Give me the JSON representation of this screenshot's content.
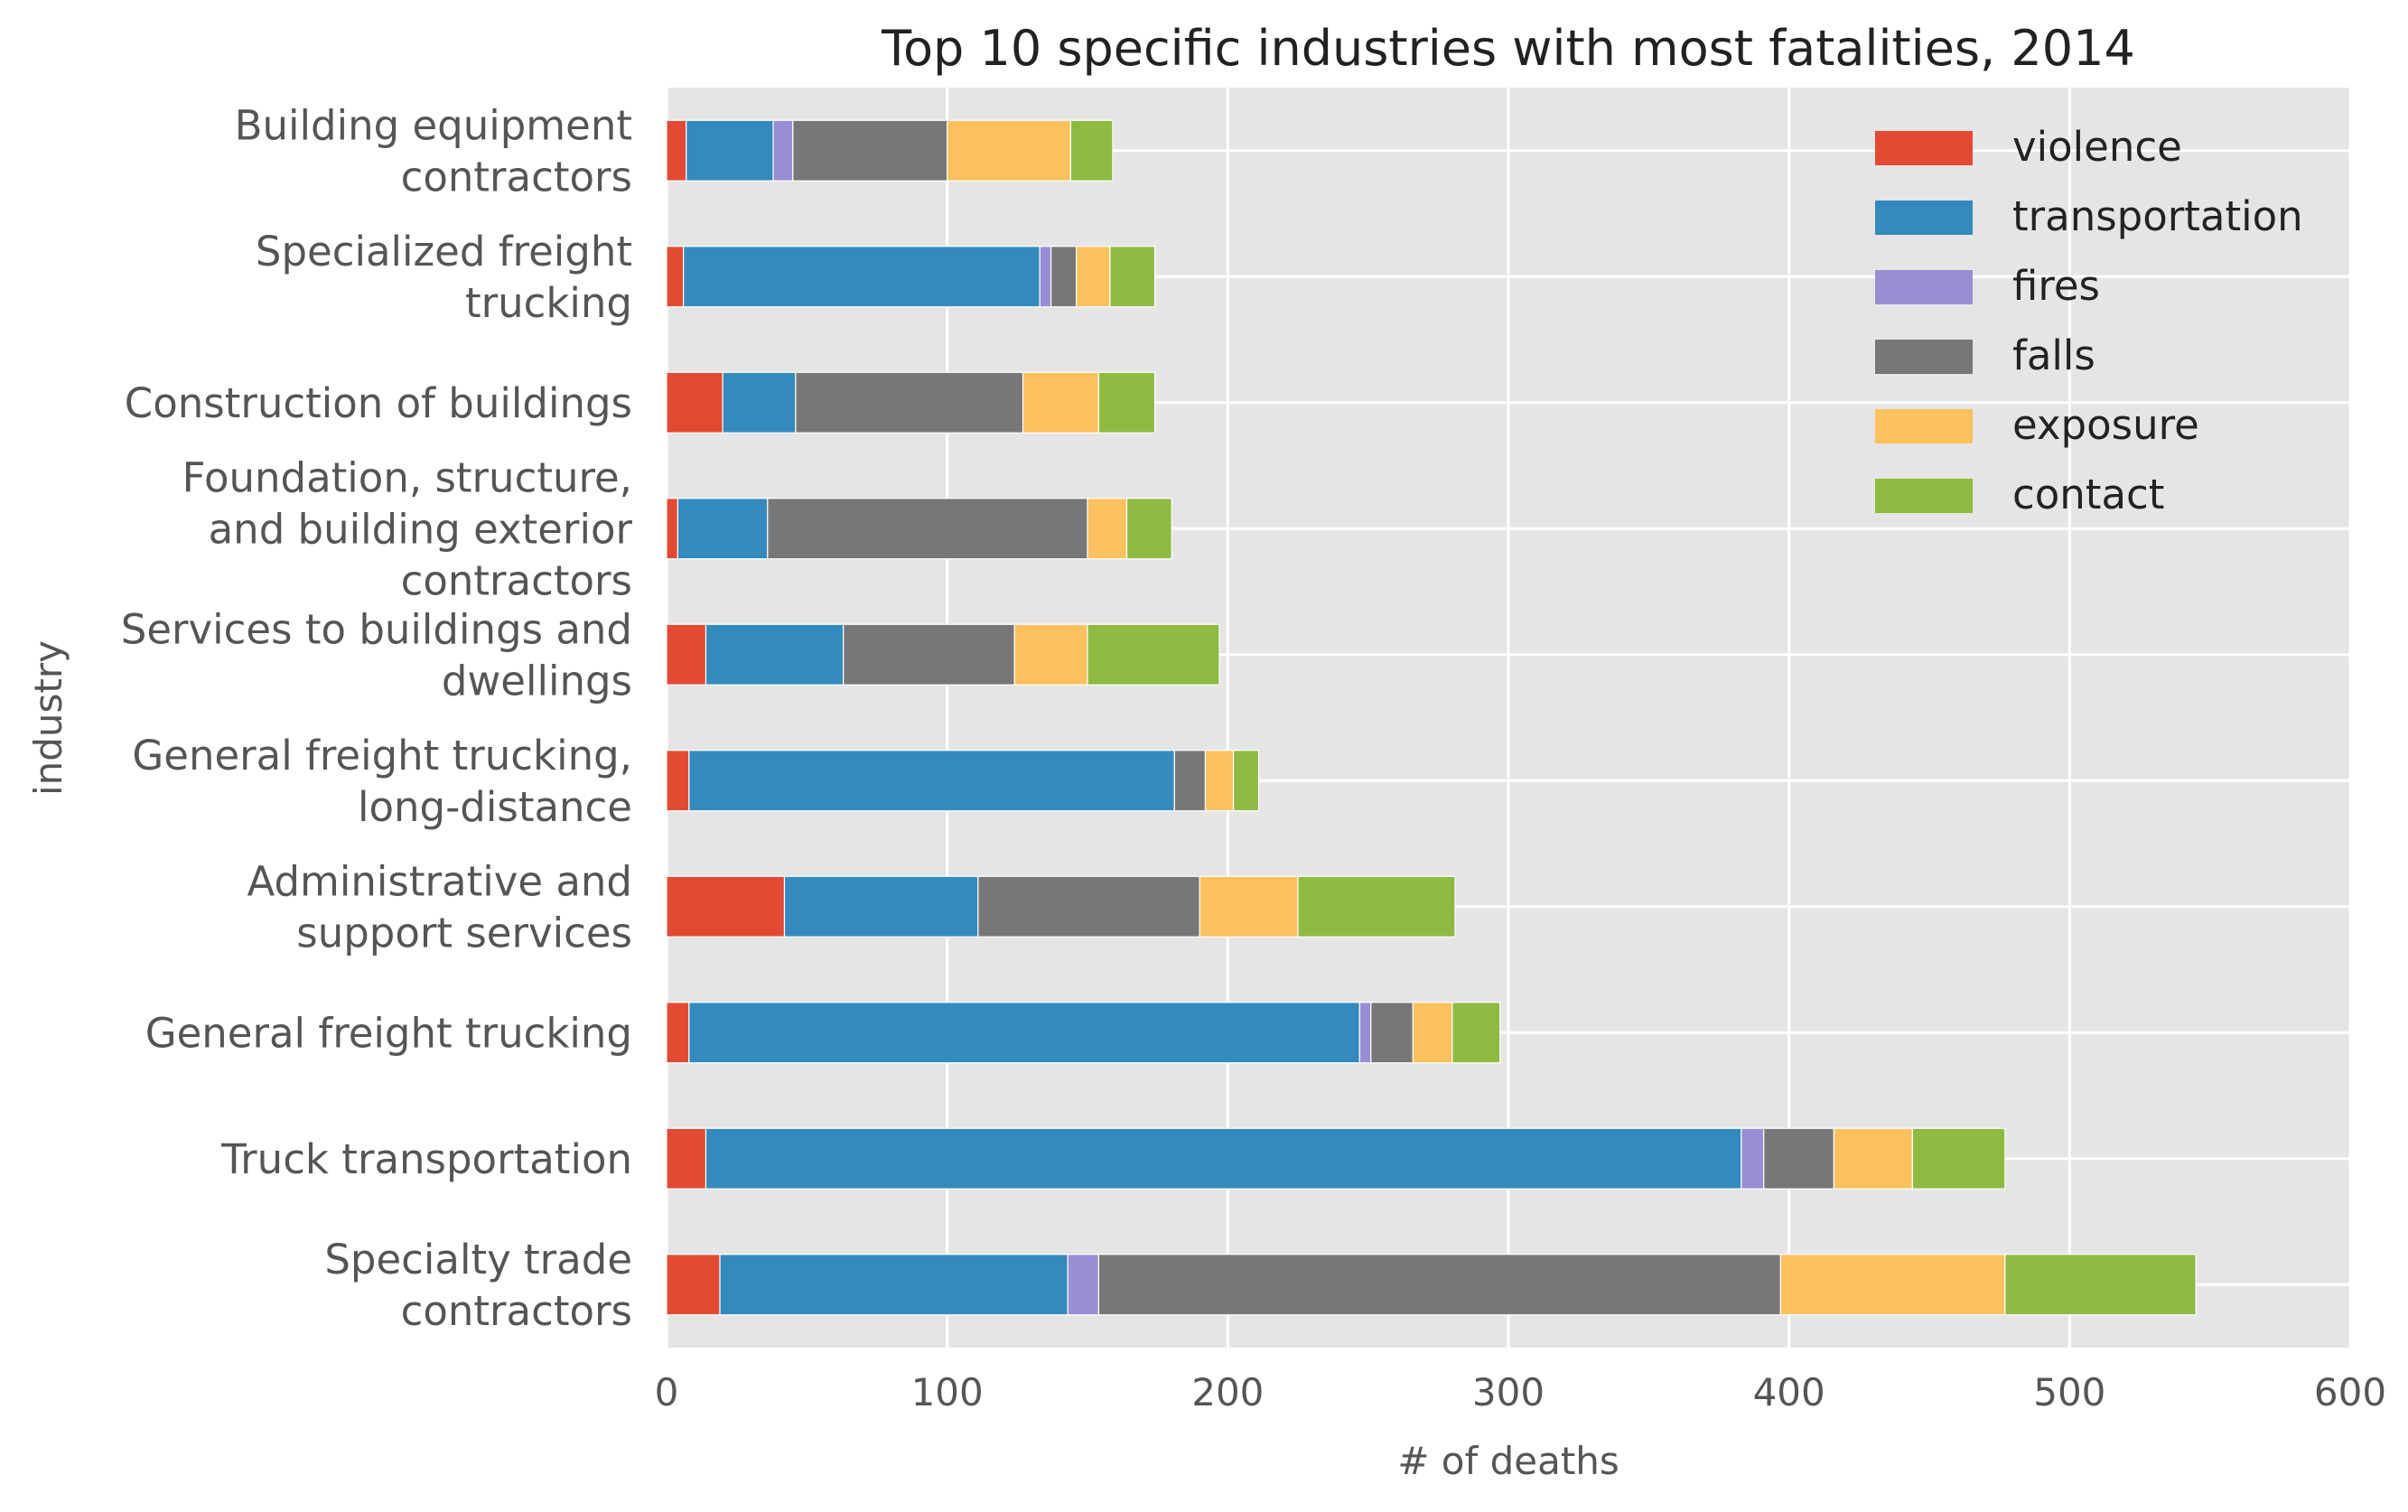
{
  "chart_data": {
    "type": "bar",
    "orientation": "horizontal",
    "stacked": true,
    "title": "Top 10 specific industries with most fatalities, 2014",
    "xlabel": "# of deaths",
    "ylabel": "industry",
    "xlim": [
      0,
      600
    ],
    "xticks": [
      "0",
      "100",
      "200",
      "300",
      "400",
      "500",
      "600"
    ],
    "grid": true,
    "legend_position": "top-right",
    "categories": [
      [
        "Specialty trade",
        "contractors"
      ],
      [
        "Truck transportation"
      ],
      [
        "General freight trucking"
      ],
      [
        "Administrative and",
        "support services"
      ],
      [
        "General freight trucking,",
        "long-distance"
      ],
      [
        "Services to buildings and",
        "dwellings"
      ],
      [
        "Foundation, structure,",
        "and building exterior",
        "contractors"
      ],
      [
        "Construction of buildings"
      ],
      [
        "Specialized freight",
        "trucking"
      ],
      [
        "Building equipment",
        "contractors"
      ]
    ],
    "series": [
      {
        "name": "violence",
        "color": "#E24A33",
        "values": [
          19,
          14,
          8,
          42,
          8,
          14,
          4,
          20,
          6,
          7
        ]
      },
      {
        "name": "transportation",
        "color": "#348ABD",
        "values": [
          124,
          369,
          239,
          69,
          173,
          49,
          32,
          26,
          127,
          31
        ]
      },
      {
        "name": "fires",
        "color": "#988ED5",
        "values": [
          11,
          8,
          4,
          0,
          0,
          0,
          0,
          0,
          4,
          7
        ]
      },
      {
        "name": "falls",
        "color": "#777777",
        "values": [
          243,
          25,
          15,
          79,
          11,
          61,
          114,
          81,
          9,
          55
        ]
      },
      {
        "name": "exposure",
        "color": "#FBC15E",
        "values": [
          80,
          28,
          14,
          35,
          10,
          26,
          14,
          27,
          12,
          44
        ]
      },
      {
        "name": "contact",
        "color": "#8EBA42",
        "values": [
          68,
          33,
          17,
          56,
          9,
          47,
          16,
          20,
          16,
          15
        ]
      }
    ]
  }
}
